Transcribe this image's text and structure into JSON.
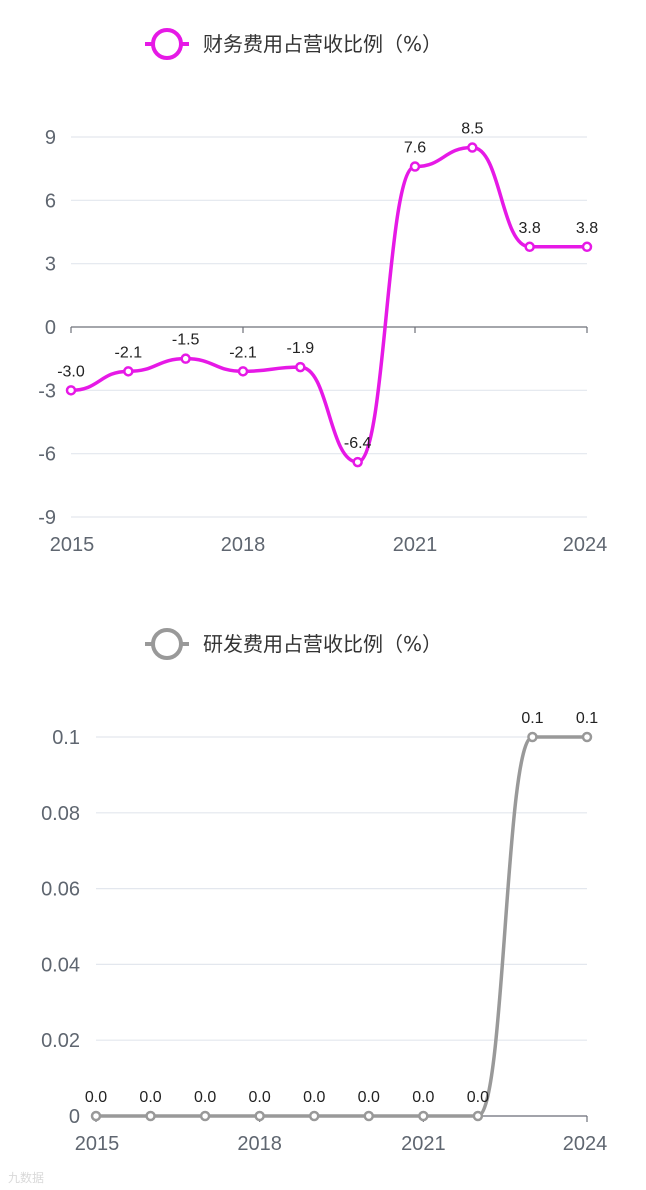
{
  "chart_data": [
    {
      "type": "line",
      "series": [
        {
          "name": "财务费用占营收比例（%）",
          "color": "#e619e6",
          "values": [
            -3.0,
            -2.1,
            -1.5,
            -2.1,
            -1.9,
            -6.4,
            7.6,
            8.5,
            3.8,
            3.8
          ],
          "labels": [
            "-3.0",
            "-2.1",
            "-1.5",
            "-2.1",
            "-1.9",
            "-6.4",
            "7.6",
            "8.5",
            "3.8",
            "3.8"
          ]
        }
      ],
      "x": [
        2015,
        2016,
        2017,
        2018,
        2019,
        2020,
        2021,
        2022,
        2023,
        2024
      ],
      "x_tick_labels": [
        "2015",
        "2018",
        "2021",
        "2024"
      ],
      "ylim": [
        -9,
        9
      ],
      "y_ticks": [
        9,
        6,
        3,
        0,
        -3,
        -6,
        -9
      ],
      "y_tick_labels": [
        "9",
        "6",
        "3",
        "0",
        "-3",
        "-6",
        "-9"
      ],
      "grid": true,
      "legend": "top-center"
    },
    {
      "type": "line",
      "series": [
        {
          "name": "研发费用占营收比例（%）",
          "color": "#999999",
          "values": [
            0.0,
            0.0,
            0.0,
            0.0,
            0.0,
            0.0,
            0.0,
            0.0,
            0.1,
            0.1
          ],
          "labels": [
            "0.0",
            "0.0",
            "0.0",
            "0.0",
            "0.0",
            "0.0",
            "0.0",
            "0.0",
            "0.1",
            "0.1"
          ]
        }
      ],
      "x": [
        2015,
        2016,
        2017,
        2018,
        2019,
        2020,
        2021,
        2022,
        2023,
        2024
      ],
      "x_tick_labels": [
        "2015",
        "2018",
        "2021",
        "2024"
      ],
      "ylim": [
        0,
        0.1
      ],
      "y_ticks": [
        0.1,
        0.08,
        0.06,
        0.04,
        0.02,
        0
      ],
      "y_tick_labels": [
        "0.1",
        "0.08",
        "0.06",
        "0.04",
        "0.02",
        "0"
      ],
      "grid": true,
      "legend": "top-center"
    }
  ],
  "watermark": "九数据"
}
